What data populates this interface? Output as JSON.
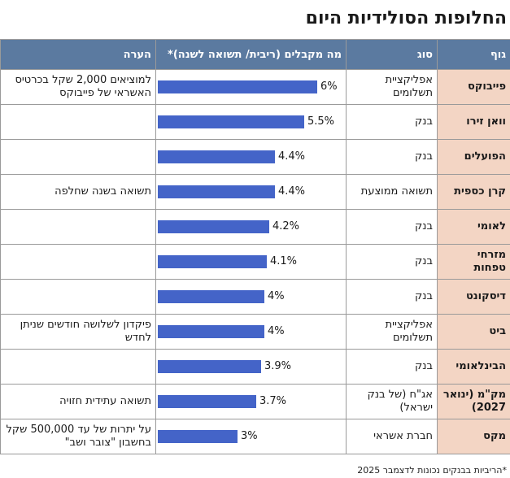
{
  "title": "החלופות הסולידיות היום",
  "headers": {
    "body": "גוף",
    "type": "סוג",
    "rate": "מה מקבלים (ריבית/ תשואה לשנה)*",
    "note": "הערה"
  },
  "footnote": "*הריביות בבנקים נכונות לדצמבר 2025",
  "colors": {
    "header": "#5b7aa0",
    "body_col": "#f3d5c4",
    "bar": "#4464c8"
  },
  "rows": [
    {
      "body": "פייבוקס",
      "type": "אפליקציית תשלומים",
      "rate_label": "6%",
      "note": "למוציאים 2,000 שקל בכרטיס האשראי של פייבוקס"
    },
    {
      "body": "וואן זירו",
      "type": "בנק",
      "rate_label": "5.5%",
      "note": ""
    },
    {
      "body": "הפועלים",
      "type": "בנק",
      "rate_label": "4.4%",
      "note": ""
    },
    {
      "body": "קרן כספית",
      "type": "תשואה ממוצעת",
      "rate_label": "4.4%",
      "note": "תשואה בשנה שחלפה"
    },
    {
      "body": "לאומי",
      "type": "בנק",
      "rate_label": "4.2%",
      "note": ""
    },
    {
      "body": "מזרחי טפחות",
      "type": "בנק",
      "rate_label": "4.1%",
      "note": ""
    },
    {
      "body": "דיסקונט",
      "type": "בנק",
      "rate_label": "4%",
      "note": ""
    },
    {
      "body": "ביט",
      "type": "אפליקציית תשלומים",
      "rate_label": "4%",
      "note": "פיקדון לשלושה חודשים שניתן לחדש"
    },
    {
      "body": "הבינלאומי",
      "type": "בנק",
      "rate_label": "3.9%",
      "note": ""
    },
    {
      "body": "מק\"מ (ינואר 2027)",
      "type": "אג\"ח (של בנק ישראל)",
      "rate_label": "3.7%",
      "note": "תשואה עתידית חזויה"
    },
    {
      "body": "מקס",
      "type": "חברת אשראי",
      "rate_label": "3%",
      "note": "על יתרות של עד 500,000 שקל בחשבון \"צובר ושב\""
    }
  ],
  "chart_data": {
    "type": "bar",
    "categories": [
      "פייבוקס",
      "וואן זירו",
      "הפועלים",
      "קרן כספית",
      "לאומי",
      "מזרחי טפחות",
      "דיסקונט",
      "ביט",
      "הבינלאומי",
      "מק\"מ (ינואר 2027)",
      "מקס"
    ],
    "values": [
      6,
      5.5,
      4.4,
      4.4,
      4.2,
      4.1,
      4,
      4,
      3.9,
      3.7,
      3
    ],
    "ylabel": "מה מקבלים (ריבית/ תשואה לשנה)*",
    "orientation": "horizontal"
  }
}
